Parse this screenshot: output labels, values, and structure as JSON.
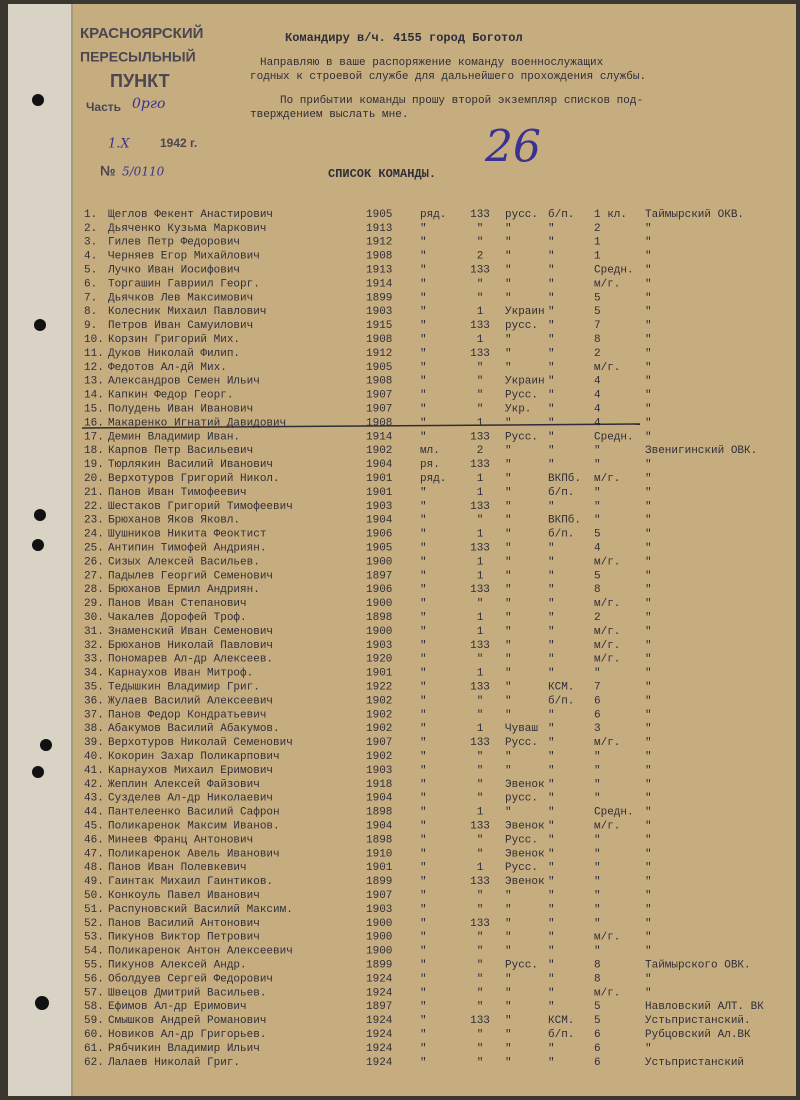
{
  "stamp": {
    "line1": "КРАСНОЯРСКИЙ",
    "line2": "ПЕРЕСЫЛЬНЫЙ",
    "line3": "ПУНКТ",
    "part": "Часть",
    "part_hand": "0рго",
    "date": "1.X",
    "year": "1942 г.",
    "number_label": "№",
    "number": "5/0110"
  },
  "letter": {
    "addressee": "Командиру в/ч. 4155 город Боготол",
    "para1": "Направляю в ваше распоряжение команду военнослужащих",
    "para1b": "годных к строевой службе для дальнейшего прохождения службы.",
    "para2": "По прибытии команды прошу второй экземпляр списков под-",
    "para2b": "тверждением выслать мне.",
    "hand_number": "26",
    "list_title": "СПИСОК КОМАНДЫ."
  },
  "rows": [
    [
      "1.",
      "Щеглов Фекент Анастирович",
      "1905",
      "ряд.",
      "133",
      "русс.",
      "б/п.",
      "1 кл.",
      "Таймырский ОКВ."
    ],
    [
      "2.",
      "Дьяченко Кузьма Маркович",
      "1913",
      "\"",
      "\"",
      "\"",
      "\"",
      "2",
      "\""
    ],
    [
      "3.",
      "Гилев Петр Федорович",
      "1912",
      "\"",
      "\"",
      "\"",
      "\"",
      "1",
      "\""
    ],
    [
      "4.",
      "Черняев Егор Михайлович",
      "1908",
      "\"",
      "2",
      "\"",
      "\"",
      "1",
      "\""
    ],
    [
      "5.",
      "Лучко Иван Иосифович",
      "1913",
      "\"",
      "133",
      "\"",
      "\"",
      "Средн.",
      "\""
    ],
    [
      "6.",
      "Торгашин Гавриил Георг.",
      "1914",
      "\"",
      "\"",
      "\"",
      "\"",
      "м/г.",
      "\""
    ],
    [
      "7.",
      "Дьячков Лев Максимович",
      "1899",
      "\"",
      "\"",
      "\"",
      "\"",
      "5",
      "\""
    ],
    [
      "8.",
      "Колесник Михаил Павлович",
      "1903",
      "\"",
      "1",
      "Украин",
      "\"",
      "5",
      "\""
    ],
    [
      "9.",
      "Петров Иван Самуилович",
      "1915",
      "\"",
      "133",
      "русс.",
      "\"",
      "7",
      "\""
    ],
    [
      "10.",
      "Корзин Григорий Мих.",
      "1908",
      "\"",
      "1",
      "\"",
      "\"",
      "8",
      "\""
    ],
    [
      "11.",
      "Дуков Николай Филип.",
      "1912",
      "\"",
      "133",
      "\"",
      "\"",
      "2",
      "\""
    ],
    [
      "12.",
      "Федотов Ал-дй Мих.",
      "1905",
      "\"",
      "\"",
      "\"",
      "\"",
      "м/г.",
      "\""
    ],
    [
      "13.",
      "Александров Семен Ильич",
      "1908",
      "\"",
      "\"",
      "Украин",
      "\"",
      "4",
      "\""
    ],
    [
      "14.",
      "Капкин Федор Георг.",
      "1907",
      "\"",
      "\"",
      "Русс.",
      "\"",
      "4",
      "\""
    ],
    [
      "15.",
      "Полудень Иван Иванович",
      "1907",
      "\"",
      "\"",
      "Укр.",
      "\"",
      "4",
      "\""
    ],
    [
      "16.",
      "Макаренко Игнатий Давидович",
      "1908",
      "\"",
      "1",
      "\"",
      "\"",
      "4",
      "\""
    ],
    [
      "17.",
      "Демин Владимир Иван.",
      "1914",
      "\"",
      "133",
      "Русс.",
      "\"",
      "Средн.",
      "\""
    ],
    [
      "18.",
      "Карпов Петр Васильевич",
      "1902",
      "мл.",
      "2",
      "\"",
      "\"",
      "\"",
      "Звенигинский ОВК."
    ],
    [
      "19.",
      "Тюрлякин Василий Иванович",
      "1904",
      "ря.",
      "133",
      "\"",
      "\"",
      "\"",
      "\""
    ],
    [
      "20.",
      "Верхотуров Григорий Никол.",
      "1901",
      "ряд.",
      "1",
      "\"",
      "ВКПб.",
      "м/г.",
      "\""
    ],
    [
      "21.",
      "Панов Иван Тимофеевич",
      "1901",
      "\"",
      "1",
      "\"",
      "б/п.",
      "\"",
      "\""
    ],
    [
      "22.",
      "Шестаков Григорий Тимофеевич",
      "1903",
      "\"",
      "133",
      "\"",
      "\"",
      "\"",
      "\""
    ],
    [
      "23.",
      "Брюханов Яков Яковл.",
      "1904",
      "\"",
      "\"",
      "\"",
      "ВКПб.",
      "\"",
      "\""
    ],
    [
      "24.",
      "Шушников Никита Феоктист",
      "1906",
      "\"",
      "1",
      "\"",
      "б/п.",
      "5",
      "\""
    ],
    [
      "25.",
      "Антипин Тимофей Андриян.",
      "1905",
      "\"",
      "133",
      "\"",
      "\"",
      "4",
      "\""
    ],
    [
      "26.",
      "Сизых Алексей Васильев.",
      "1900",
      "\"",
      "1",
      "\"",
      "\"",
      "м/г.",
      "\""
    ],
    [
      "27.",
      "Падылев Георгий Семенович",
      "1897",
      "\"",
      "1",
      "\"",
      "\"",
      "5",
      "\""
    ],
    [
      "28.",
      "Брюханов Ермил Андриян.",
      "1906",
      "\"",
      "133",
      "\"",
      "\"",
      "8",
      "\""
    ],
    [
      "29.",
      "Панов Иван Степанович",
      "1900",
      "\"",
      "\"",
      "\"",
      "\"",
      "м/г.",
      "\""
    ],
    [
      "30.",
      "Чакалев Дорофей Троф.",
      "1898",
      "\"",
      "1",
      "\"",
      "\"",
      "2",
      "\""
    ],
    [
      "31.",
      "Знаменский Иван Семенович",
      "1900",
      "\"",
      "1",
      "\"",
      "\"",
      "м/г.",
      "\""
    ],
    [
      "32.",
      "Брюханов Николай Павлович",
      "1903",
      "\"",
      "133",
      "\"",
      "\"",
      "м/г.",
      "\""
    ],
    [
      "33.",
      "Пономарев Ал-др Алексеев.",
      "1920",
      "\"",
      "\"",
      "\"",
      "\"",
      "м/г.",
      "\""
    ],
    [
      "34.",
      "Карнаухов Иван Митроф.",
      "1901",
      "\"",
      "1",
      "\"",
      "\"",
      "\"",
      "\""
    ],
    [
      "35.",
      "Тедышкин Владимир Григ.",
      "1922",
      "\"",
      "133",
      "\"",
      "КСМ.",
      "7",
      "\""
    ],
    [
      "36.",
      "Жулаев Василий Алексеевич",
      "1902",
      "\"",
      "\"",
      "\"",
      "б/п.",
      "6",
      "\""
    ],
    [
      "37.",
      "Панов Федор Кондратьевич",
      "1902",
      "\"",
      "\"",
      "\"",
      "\"",
      "6",
      "\""
    ],
    [
      "38.",
      "Абакумов Василий Абакумов.",
      "1902",
      "\"",
      "1",
      "Чуваш",
      "\"",
      "3",
      "\""
    ],
    [
      "39.",
      "Верхотуров Николай Семенович",
      "1907",
      "\"",
      "133",
      "Русс.",
      "\"",
      "м/г.",
      "\""
    ],
    [
      "40.",
      "Кокорин Захар Поликарпович",
      "1902",
      "\"",
      "\"",
      "\"",
      "\"",
      "\"",
      "\""
    ],
    [
      "41.",
      "Карнаухов Михаил Еримович",
      "1903",
      "\"",
      "\"",
      "\"",
      "\"",
      "\"",
      "\""
    ],
    [
      "42.",
      "Жеплин Алексей Файзович",
      "1918",
      "\"",
      "\"",
      "Эвенок",
      "\"",
      "\"",
      "\""
    ],
    [
      "43.",
      "Сузделев Ал-др Николаевич",
      "1904",
      "\"",
      "\"",
      "русс.",
      "\"",
      "\"",
      "\""
    ],
    [
      "44.",
      "Пантелеенко Василий Сафрон",
      "1898",
      "\"",
      "1",
      "\"",
      "\"",
      "Средн.",
      "\""
    ],
    [
      "45.",
      "Поликаренок Максим Иванов.",
      "1904",
      "\"",
      "133",
      "Эвенок",
      "\"",
      "м/г.",
      "\""
    ],
    [
      "46.",
      "Минеев Франц Антонович",
      "1898",
      "\"",
      "\"",
      "Русс.",
      "\"",
      "\"",
      "\""
    ],
    [
      "47.",
      "Поликаренок Авель Иванович",
      "1910",
      "\"",
      "\"",
      "Эвенок",
      "\"",
      "\"",
      "\""
    ],
    [
      "48.",
      "Панов Иван Полевкевич",
      "1901",
      "\"",
      "1",
      "Русс.",
      "\"",
      "\"",
      "\""
    ],
    [
      "49.",
      "Гаинтак Михаил Гаинтиков.",
      "1899",
      "\"",
      "133",
      "Эвенок",
      "\"",
      "\"",
      "\""
    ],
    [
      "50.",
      "Конкоуль Павел Иванович",
      "1907",
      "\"",
      "\"",
      "\"",
      "\"",
      "\"",
      "\""
    ],
    [
      "51.",
      "Распуновский Василий Максим.",
      "1903",
      "\"",
      "\"",
      "\"",
      "\"",
      "\"",
      "\""
    ],
    [
      "52.",
      "Панов Василий Антонович",
      "1900",
      "\"",
      "133",
      "\"",
      "\"",
      "\"",
      "\""
    ],
    [
      "53.",
      "Пикунов Виктор Петрович",
      "1900",
      "\"",
      "\"",
      "\"",
      "\"",
      "м/г.",
      "\""
    ],
    [
      "54.",
      "Поликаренок Антон Алексеевич",
      "1900",
      "\"",
      "\"",
      "\"",
      "\"",
      "\"",
      "\""
    ],
    [
      "55.",
      "Пикунов Алексей Андр.",
      "1899",
      "\"",
      "\"",
      "Русс.",
      "\"",
      "8",
      "Таймырского ОВК."
    ],
    [
      "56.",
      "Оболдуев Сергей Федорович",
      "1924",
      "\"",
      "\"",
      "\"",
      "\"",
      "8",
      "\""
    ],
    [
      "57.",
      "Швецов Дмитрий Васильев.",
      "1924",
      "\"",
      "\"",
      "\"",
      "\"",
      "м/г.",
      "\""
    ],
    [
      "58.",
      "Ефимов Ал-др Еримович",
      "1897",
      "\"",
      "\"",
      "\"",
      "\"",
      "5",
      "Навловский АЛТ. ВК"
    ],
    [
      "59.",
      "Смышков Андрей Романович",
      "1924",
      "\"",
      "133",
      "\"",
      "КСМ.",
      "5",
      "Устьпристанский."
    ],
    [
      "60.",
      "Новиков Ал-др Григорьев.",
      "1924",
      "\"",
      "\"",
      "\"",
      "б/п.",
      "6",
      "Рубцовский Ал.ВК"
    ],
    [
      "61.",
      "Рябчикин Владимир Ильич",
      "1924",
      "\"",
      "\"",
      "\"",
      "\"",
      "6",
      "\""
    ],
    [
      "62.",
      "Лалаев Николай Григ.",
      "1924",
      "\"",
      "\"",
      "\"",
      "\"",
      "6",
      "Устьпристанский"
    ]
  ]
}
